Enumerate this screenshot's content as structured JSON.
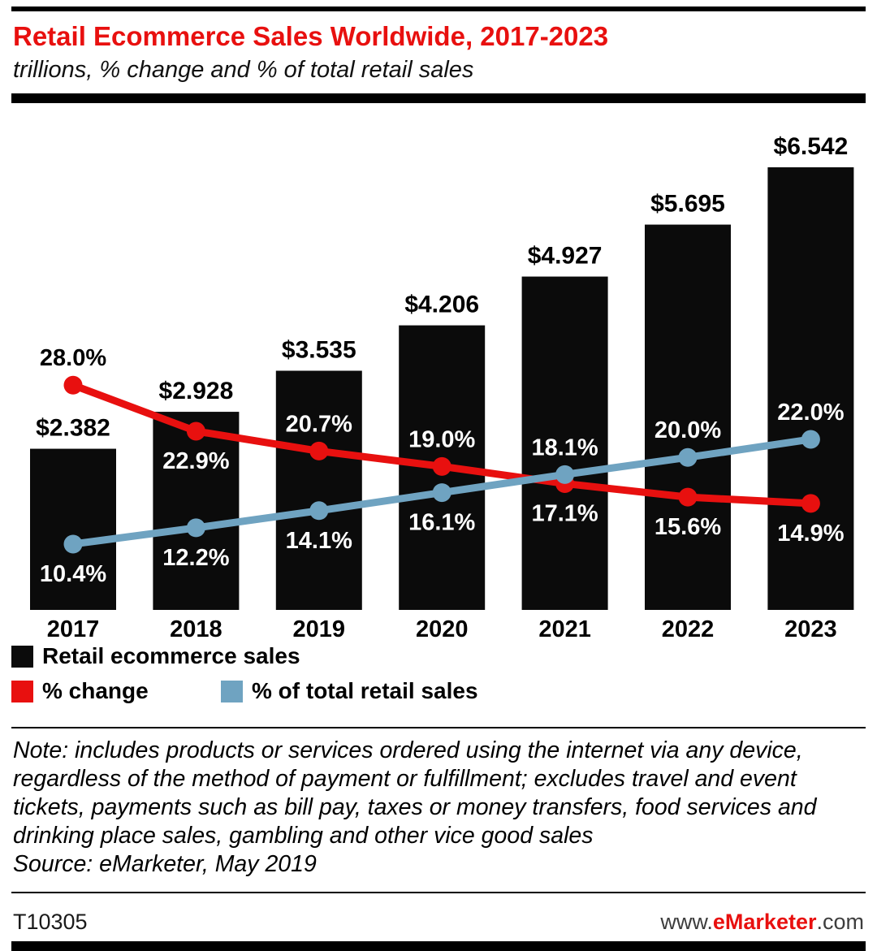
{
  "header": {
    "title": "Retail Ecommerce Sales Worldwide, 2017-2023",
    "subtitle": "trillions, % change and % of total retail sales"
  },
  "chart_data": {
    "type": "bar",
    "combo": "bar+line",
    "title": "Retail Ecommerce Sales Worldwide, 2017-2023",
    "subtitle": "trillions, % change and % of total retail sales",
    "categories": [
      "2017",
      "2018",
      "2019",
      "2020",
      "2021",
      "2022",
      "2023"
    ],
    "series": [
      {
        "name": "Retail ecommerce sales",
        "type": "bar",
        "unit": "$ trillions",
        "color": "#0b0b0b",
        "values": [
          2.382,
          2.928,
          3.535,
          4.206,
          4.927,
          5.695,
          6.542
        ],
        "labels": [
          "$2.382",
          "$2.928",
          "$3.535",
          "$4.206",
          "$4.927",
          "$5.695",
          "$6.542"
        ]
      },
      {
        "name": "% change",
        "type": "line",
        "unit": "%",
        "color": "#e8100f",
        "values": [
          28.0,
          22.9,
          20.7,
          19.0,
          17.1,
          15.6,
          14.9
        ],
        "labels": [
          "28.0%",
          "22.9%",
          "20.7%",
          "19.0%",
          "17.1%",
          "15.6%",
          "14.9%"
        ],
        "label_placement": [
          "above",
          "below",
          "above",
          "above",
          "below",
          "below",
          "below"
        ],
        "label_colors": [
          "#000000",
          "#ffffff",
          "#ffffff",
          "#ffffff",
          "#ffffff",
          "#ffffff",
          "#ffffff"
        ]
      },
      {
        "name": "% of total retail sales",
        "type": "line",
        "unit": "%",
        "color": "#6fa3c1",
        "values": [
          10.4,
          12.2,
          14.1,
          16.1,
          18.1,
          20.0,
          22.0
        ],
        "labels": [
          "10.4%",
          "12.2%",
          "14.1%",
          "16.1%",
          "18.1%",
          "20.0%",
          "22.0%"
        ],
        "label_placement": [
          "below",
          "below",
          "below",
          "below",
          "above",
          "above",
          "above"
        ],
        "label_colors": [
          "#ffffff",
          "#ffffff",
          "#ffffff",
          "#ffffff",
          "#ffffff",
          "#ffffff",
          "#ffffff"
        ]
      }
    ],
    "bar_axis_range": [
      0,
      6.542
    ],
    "line_axis_range": [
      0,
      30
    ],
    "grid": false,
    "axes_visible": false,
    "legend_position": "bottom"
  },
  "legend": {
    "items": [
      {
        "label": "Retail ecommerce sales",
        "color": "#0b0b0b"
      },
      {
        "label": "% change",
        "color": "#e8100f"
      },
      {
        "label": "% of total retail sales",
        "color": "#6fa3c1"
      }
    ]
  },
  "note": {
    "text": "Note: includes products or services ordered using the internet via any device, regardless of the method of payment or fulfillment; excludes travel and event tickets, payments such as bill pay, taxes or money transfers, food services and drinking place sales, gambling and other vice good sales",
    "source": "Source: eMarketer, May 2019"
  },
  "footer": {
    "chart_id": "T10305",
    "site": {
      "prefix": "www.",
      "brand": "eMarketer",
      "suffix": ".com"
    }
  },
  "colors": {
    "title": "#e8100f",
    "text": "#000000",
    "rule": "#000000",
    "brand_red": "#e8100f"
  }
}
